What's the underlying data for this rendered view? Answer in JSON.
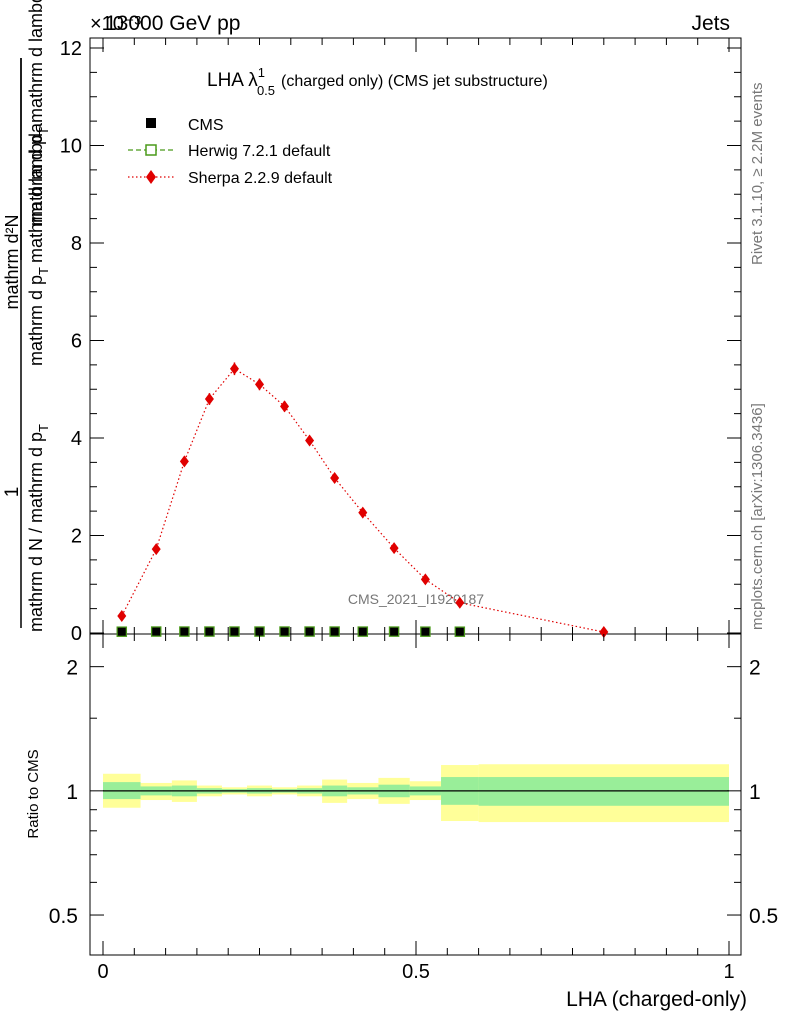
{
  "header": {
    "left": "13000 GeV pp",
    "right": "Jets",
    "exponent": "×10⁻³"
  },
  "side_labels": {
    "rivet": "Rivet 3.1.10, ≥ 2.2M events",
    "mcplots": "mcplots.cern.ch [arXiv:1306.3436]"
  },
  "chart_data": [
    {
      "type": "line",
      "title_main": "LHA λ",
      "title_sup": "1",
      "title_sub": "0.5",
      "title_rest": "(charged only) (CMS jet substructure)",
      "watermark": "CMS_2021_I1920187",
      "ylabel_num": "1",
      "ylabel_den": "mathrm d N / mathrm d p",
      "ylabel_den_sub": "T",
      "ylabel_num2": "mathrm d²N",
      "ylabel_den2": "mathrm d p",
      "ylabel_den2_sub": "T",
      "ylabel_den2_rest": "mathrm d lambda",
      "ylabel_inner": "mathrm d p",
      "ylabel_inner_sub": "T",
      "ylabel_inner_rest": "mathrm d lambda",
      "xlim": [
        0,
        1
      ],
      "ylim": [
        0,
        12.2
      ],
      "y_scale_note": "values in units of 10^-3",
      "yticks": [
        0,
        2,
        4,
        6,
        8,
        10,
        12
      ],
      "ytick_labels": [
        "0",
        "2",
        "4",
        "6",
        "8",
        "10",
        "12"
      ],
      "legend": [
        {
          "name": "CMS",
          "color": "#000000",
          "marker": "square"
        },
        {
          "name": "Herwig 7.2.1 default",
          "color": "#4a9a1a",
          "marker": "open-square",
          "line": "dashed"
        },
        {
          "name": "Sherpa 2.2.9 default",
          "color": "#e00000",
          "marker": "diamond",
          "line": "dotted"
        }
      ],
      "series": [
        {
          "name": "CMS",
          "x": [
            0.03,
            0.085,
            0.13,
            0.17,
            0.21,
            0.25,
            0.29,
            0.33,
            0.37,
            0.415,
            0.465,
            0.515,
            0.57
          ],
          "y": [
            0.006,
            0.009,
            0.009,
            0.009,
            0.009,
            0.009,
            0.009,
            0.009,
            0.009,
            0.008,
            0.008,
            0.007,
            0.006
          ]
        },
        {
          "name": "Herwig 7.2.1 default",
          "x": [
            0.03,
            0.085,
            0.13,
            0.17,
            0.21,
            0.25,
            0.29,
            0.33,
            0.37,
            0.415,
            0.465,
            0.515,
            0.57
          ],
          "y": [
            0.006,
            0.009,
            0.009,
            0.009,
            0.009,
            0.009,
            0.009,
            0.009,
            0.009,
            0.008,
            0.008,
            0.007,
            0.006
          ]
        },
        {
          "name": "Sherpa 2.2.9 default",
          "x": [
            0.03,
            0.085,
            0.13,
            0.17,
            0.21,
            0.25,
            0.29,
            0.33,
            0.37,
            0.415,
            0.465,
            0.515,
            0.57,
            0.8
          ],
          "y": [
            0.35,
            1.72,
            3.52,
            4.8,
            5.42,
            5.1,
            4.65,
            3.95,
            3.18,
            2.47,
            1.74,
            1.1,
            0.62,
            0.02
          ],
          "err": [
            0.05,
            0.07,
            0.1,
            0.12,
            0.13,
            0.12,
            0.11,
            0.1,
            0.09,
            0.08,
            0.07,
            0.06,
            0.05,
            0.01
          ]
        }
      ]
    },
    {
      "type": "area",
      "ylabel": "Ratio to CMS",
      "xlabel": "LHA (charged-only)",
      "xlim": [
        0,
        1
      ],
      "ylim": [
        0.4,
        2.4
      ],
      "y_scale": "log",
      "yticks": [
        0.5,
        1,
        2
      ],
      "ytick_labels": [
        "0.5",
        "1",
        "2"
      ],
      "xticks": [
        0,
        0.5,
        1
      ],
      "xtick_labels": [
        "0",
        "0.5",
        "1"
      ],
      "bins": [
        {
          "lo": 0.0,
          "hi": 0.06,
          "inner": [
            0.955,
            1.05
          ],
          "outer": [
            0.91,
            1.1
          ]
        },
        {
          "lo": 0.06,
          "hi": 0.11,
          "inner": [
            0.975,
            1.025
          ],
          "outer": [
            0.95,
            1.045
          ]
        },
        {
          "lo": 0.11,
          "hi": 0.15,
          "inner": [
            0.97,
            1.03
          ],
          "outer": [
            0.94,
            1.06
          ]
        },
        {
          "lo": 0.15,
          "hi": 0.19,
          "inner": [
            0.985,
            1.015
          ],
          "outer": [
            0.97,
            1.03
          ]
        },
        {
          "lo": 0.19,
          "hi": 0.23,
          "inner": [
            0.99,
            1.01
          ],
          "outer": [
            0.98,
            1.02
          ]
        },
        {
          "lo": 0.23,
          "hi": 0.27,
          "inner": [
            0.985,
            1.015
          ],
          "outer": [
            0.97,
            1.03
          ]
        },
        {
          "lo": 0.27,
          "hi": 0.31,
          "inner": [
            0.99,
            1.01
          ],
          "outer": [
            0.98,
            1.02
          ]
        },
        {
          "lo": 0.31,
          "hi": 0.35,
          "inner": [
            0.985,
            1.015
          ],
          "outer": [
            0.97,
            1.03
          ]
        },
        {
          "lo": 0.35,
          "hi": 0.39,
          "inner": [
            0.97,
            1.03
          ],
          "outer": [
            0.935,
            1.065
          ]
        },
        {
          "lo": 0.39,
          "hi": 0.44,
          "inner": [
            0.98,
            1.02
          ],
          "outer": [
            0.955,
            1.045
          ]
        },
        {
          "lo": 0.44,
          "hi": 0.49,
          "inner": [
            0.965,
            1.035
          ],
          "outer": [
            0.93,
            1.075
          ]
        },
        {
          "lo": 0.49,
          "hi": 0.54,
          "inner": [
            0.975,
            1.025
          ],
          "outer": [
            0.95,
            1.055
          ]
        },
        {
          "lo": 0.54,
          "hi": 0.6,
          "inner": [
            0.925,
            1.08
          ],
          "outer": [
            0.845,
            1.155
          ]
        },
        {
          "lo": 0.6,
          "hi": 1.0,
          "inner": [
            0.92,
            1.08
          ],
          "outer": [
            0.84,
            1.16
          ]
        }
      ]
    }
  ],
  "colors": {
    "band_inner": "#99ee99",
    "band_outer": "#ffff99",
    "sherpa": "#e00000",
    "herwig": "#4a9a1a"
  }
}
